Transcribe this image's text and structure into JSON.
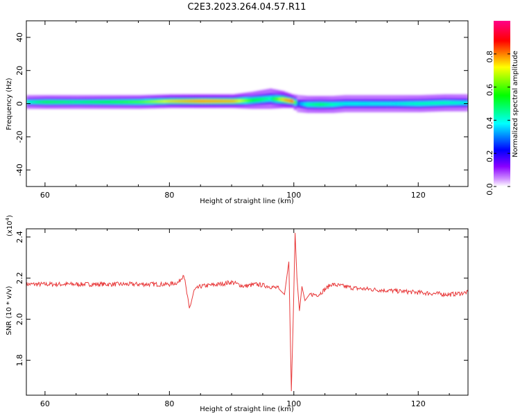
{
  "chart_data": [
    {
      "type": "heatmap",
      "title": "C2E3.2023.264.04.57.R11",
      "xlabel": "Height of straight line (km)",
      "ylabel": "Frequency (Hz)",
      "xlim": [
        57,
        128
      ],
      "ylim": [
        -50,
        50
      ],
      "xticks": [
        "60",
        "80",
        "100",
        "120"
      ],
      "yticks": [
        "-40",
        "-20",
        "0",
        "20",
        "40"
      ],
      "colorbar": {
        "label": "Normalized spectral amplitude",
        "range": [
          0,
          1
        ],
        "ticks": [
          "0.0",
          "0.2",
          "0.4",
          "0.6",
          "0.8"
        ],
        "colors": [
          "#ffffff",
          "#8a00ff",
          "#0000ff",
          "#00ffff",
          "#00ff00",
          "#ffff00",
          "#ff0000",
          "#ff0088"
        ]
      },
      "ridge": {
        "x": [
          57.5,
          60,
          65,
          70,
          75,
          80,
          85,
          90,
          93,
          96,
          98,
          99.5,
          100.5,
          102,
          104,
          106,
          108,
          112,
          116,
          120,
          124,
          128
        ],
        "center_hz": [
          1,
          1,
          1,
          1,
          1,
          1.5,
          1.5,
          1.5,
          2,
          3,
          2.5,
          1.5,
          0,
          -0.5,
          -0.5,
          -0.5,
          0,
          0,
          0,
          0,
          0.5,
          0.5
        ],
        "peak": [
          0.45,
          0.55,
          0.5,
          0.55,
          0.6,
          0.75,
          0.85,
          0.8,
          0.55,
          0.45,
          0.75,
          0.9,
          0.3,
          0.45,
          0.5,
          0.45,
          0.4,
          0.4,
          0.4,
          0.45,
          0.45,
          0.4
        ],
        "width_hz": [
          4,
          4,
          4,
          4,
          4,
          4,
          4,
          4,
          5,
          6,
          5,
          4,
          5,
          5,
          5,
          5,
          5,
          5,
          5,
          5,
          5,
          5
        ]
      }
    },
    {
      "type": "line",
      "xlabel": "Height of straight line (km)",
      "ylabel": "SNR (10 * v/v)",
      "multiplier_label": "(x10",
      "multiplier_exponent": "4",
      "multiplier_close": ")",
      "xlim": [
        57,
        128
      ],
      "ylim": [
        1.63,
        2.44
      ],
      "xticks": [
        "60",
        "80",
        "100",
        "120"
      ],
      "yticks": [
        "1.8",
        "2.0",
        "2.2",
        "2.4"
      ],
      "color": "#e8393a",
      "x": [
        57,
        60,
        65,
        70,
        75,
        78,
        80,
        81.5,
        82.3,
        83.2,
        84,
        85,
        88,
        90,
        92,
        94,
        96,
        97.5,
        98.5,
        99.2,
        99.6,
        99.9,
        100.2,
        100.5,
        100.9,
        101.3,
        101.8,
        102.5,
        104,
        106,
        108,
        110,
        115,
        120,
        125,
        128
      ],
      "y": [
        2.17,
        2.17,
        2.17,
        2.17,
        2.17,
        2.17,
        2.17,
        2.18,
        2.22,
        2.05,
        2.14,
        2.16,
        2.17,
        2.18,
        2.16,
        2.17,
        2.16,
        2.15,
        2.12,
        2.28,
        1.65,
        2.0,
        2.42,
        2.2,
        2.04,
        2.16,
        2.09,
        2.12,
        2.12,
        2.17,
        2.16,
        2.15,
        2.14,
        2.13,
        2.12,
        2.13
      ]
    }
  ]
}
